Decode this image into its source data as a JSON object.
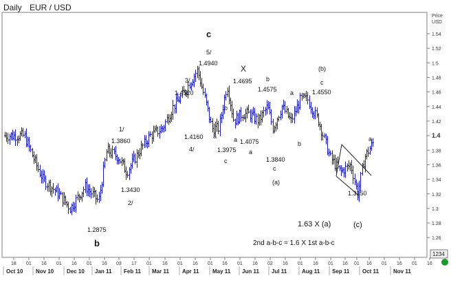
{
  "header": {
    "period": "Daily",
    "symbol": "EUR / USD"
  },
  "axis": {
    "price_label_line1": "Price",
    "price_label_line2": "USD",
    "last_price_badge": "1234"
  },
  "chart_data": {
    "type": "ohlc",
    "title": "Daily   EUR / USD",
    "y_axis": {
      "label": "Price USD",
      "range": [
        1.25,
        1.56
      ],
      "ticks": [
        "1.54",
        "1.52",
        "1.5",
        "1.48",
        "1.46",
        "1.44",
        "1.42",
        "1.4",
        "1.38",
        "1.36",
        "1.34",
        "1.32",
        "1.3",
        "1.28",
        "1.26"
      ],
      "bold_tick": "1.4"
    },
    "x_axis": {
      "day_ticks": [
        "18",
        "01",
        "16",
        "01",
        "16",
        "01",
        "16",
        "03",
        "17",
        "01",
        "16",
        "01",
        "16",
        "01",
        "16",
        "01",
        "16",
        "02",
        "16",
        "01",
        "16",
        "01",
        "16",
        "01",
        "16",
        "01",
        "16",
        "01",
        "16",
        "03",
        "17",
        "01",
        "16",
        "01",
        "16"
      ],
      "month_labels": [
        "Oct 10",
        "Nov 10",
        "Dec 10",
        "Jan 11",
        "Feb 11",
        "Mar 11",
        "Apr 11",
        "May 11",
        "Jun 11",
        "Jul 11",
        "Aug 11",
        "Sep 11",
        "Oct 11",
        "Nov 11"
      ]
    },
    "price_path": [
      [
        1.39,
        1.4
      ],
      [
        1.42,
        1.4
      ],
      [
        1.37,
        1.37
      ],
      [
        1.34,
        1.34
      ],
      [
        1.3,
        1.32
      ],
      [
        1.31,
        1.3
      ],
      [
        1.32,
        1.33
      ],
      [
        1.29,
        1.31
      ],
      [
        1.36,
        1.38
      ],
      [
        1.38,
        1.37
      ],
      [
        1.36,
        1.35
      ],
      [
        1.37,
        1.38
      ],
      [
        1.38,
        1.4
      ],
      [
        1.42,
        1.41
      ],
      [
        1.43,
        1.44
      ],
      [
        1.45,
        1.46
      ],
      [
        1.48,
        1.49
      ],
      [
        1.49,
        1.45
      ],
      [
        1.42,
        1.41
      ],
      [
        1.4,
        1.41
      ],
      [
        1.46,
        1.47
      ],
      [
        1.44,
        1.42
      ],
      [
        1.41,
        1.43
      ],
      [
        1.44,
        1.43
      ],
      [
        1.41,
        1.42
      ],
      [
        1.45,
        1.44
      ],
      [
        1.39,
        1.41
      ],
      [
        1.43,
        1.44
      ],
      [
        1.43,
        1.42
      ],
      [
        1.44,
        1.45
      ],
      [
        1.46,
        1.45
      ],
      [
        1.44,
        1.42
      ],
      [
        1.4,
        1.37
      ],
      [
        1.36,
        1.35
      ],
      [
        1.34,
        1.36
      ],
      [
        1.33,
        1.32
      ],
      [
        1.35,
        1.37
      ],
      [
        1.38,
        1.39
      ]
    ],
    "annotations": [
      {
        "text": "c",
        "style": "bold"
      },
      {
        "text": "5/"
      },
      {
        "text": "1.4940"
      },
      {
        "text": "X"
      },
      {
        "text": "1.4695"
      },
      {
        "text": "b"
      },
      {
        "text": "1.4575"
      },
      {
        "text": "(b)"
      },
      {
        "text": "c"
      },
      {
        "text": "1.4550"
      },
      {
        "text": "a"
      },
      {
        "text": "3/"
      },
      {
        "text": "1.4520"
      },
      {
        "text": "b"
      },
      {
        "text": "1/"
      },
      {
        "text": "1.3860"
      },
      {
        "text": "1.4160"
      },
      {
        "text": "4/"
      },
      {
        "text": "a"
      },
      {
        "text": "1.3975"
      },
      {
        "text": "c"
      },
      {
        "text": "a"
      },
      {
        "text": "1.4075"
      },
      {
        "text": "a"
      },
      {
        "text": "1.3840"
      },
      {
        "text": "c"
      },
      {
        "text": "b"
      },
      {
        "text": "(a)"
      },
      {
        "text": "1.3430"
      },
      {
        "text": "2/"
      },
      {
        "text": "1.2875"
      },
      {
        "text": "b",
        "style": "bold"
      },
      {
        "text": "a"
      },
      {
        "text": "1.3150"
      },
      {
        "text": "1.63  X  (a)"
      },
      {
        "text": "(c)"
      },
      {
        "text": "2nd  a-b-c  =  1.6  X  1st  a-b-c"
      }
    ]
  }
}
